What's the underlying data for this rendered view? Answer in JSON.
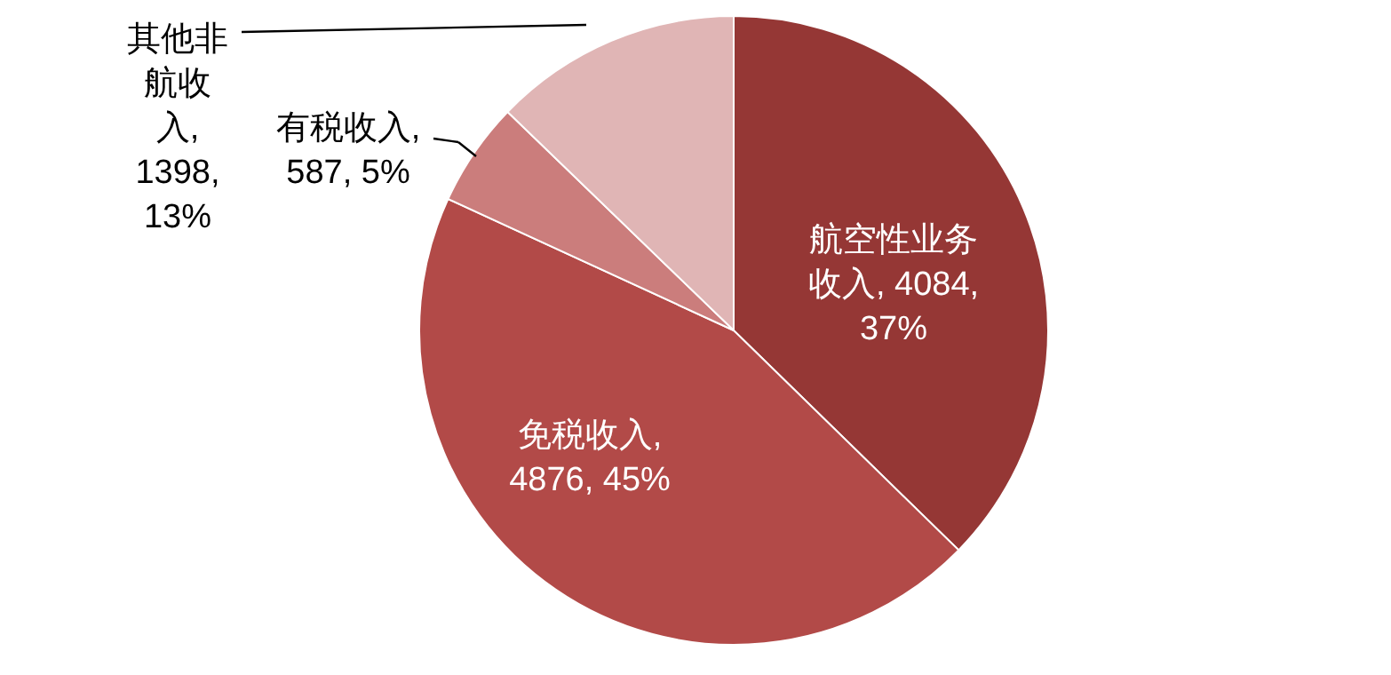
{
  "chart_data": {
    "type": "pie",
    "categories": [
      "航空性业务收入",
      "免税收入",
      "有税收入",
      "其他非航收入"
    ],
    "values": [
      4084,
      4876,
      587,
      1398
    ],
    "colors": [
      "#953735",
      "#b24a48",
      "#cb7d7c",
      "#e0b5b5"
    ],
    "value_labels": [
      ", 4084, 37%",
      ", 4876, 45%",
      ", 587, 5%",
      ", 1398, 13%"
    ]
  }
}
